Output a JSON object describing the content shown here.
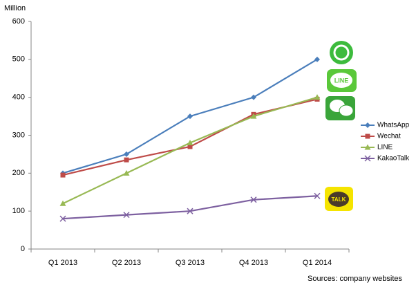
{
  "chart_data": {
    "type": "line",
    "y_label": "Million",
    "source": "Sources: company  websites",
    "logo_texts": [
      "LINE",
      "TALK"
    ],
    "categories": [
      "Q1 2013",
      "Q2 2013",
      "Q3 2013",
      "Q4 2013",
      "Q1 2014"
    ],
    "series": [
      {
        "name": "WhatsApp",
        "color": "#4a7ebb",
        "marker": "diamond",
        "values": [
          200,
          250,
          350,
          400,
          500
        ]
      },
      {
        "name": "Wechat",
        "color": "#be4b48",
        "marker": "square",
        "values": [
          195,
          235,
          270,
          355,
          395
        ]
      },
      {
        "name": "LINE",
        "color": "#98b954",
        "marker": "triangle",
        "values": [
          120,
          200,
          280,
          350,
          400
        ]
      },
      {
        "name": "KakaoTalk",
        "color": "#7d60a0",
        "marker": "x",
        "values": [
          80,
          90,
          100,
          130,
          140
        ]
      }
    ],
    "ylim": [
      0,
      600
    ],
    "yticks": [
      0,
      100,
      200,
      300,
      400,
      500,
      600
    ],
    "grid": false,
    "legend": "right"
  }
}
